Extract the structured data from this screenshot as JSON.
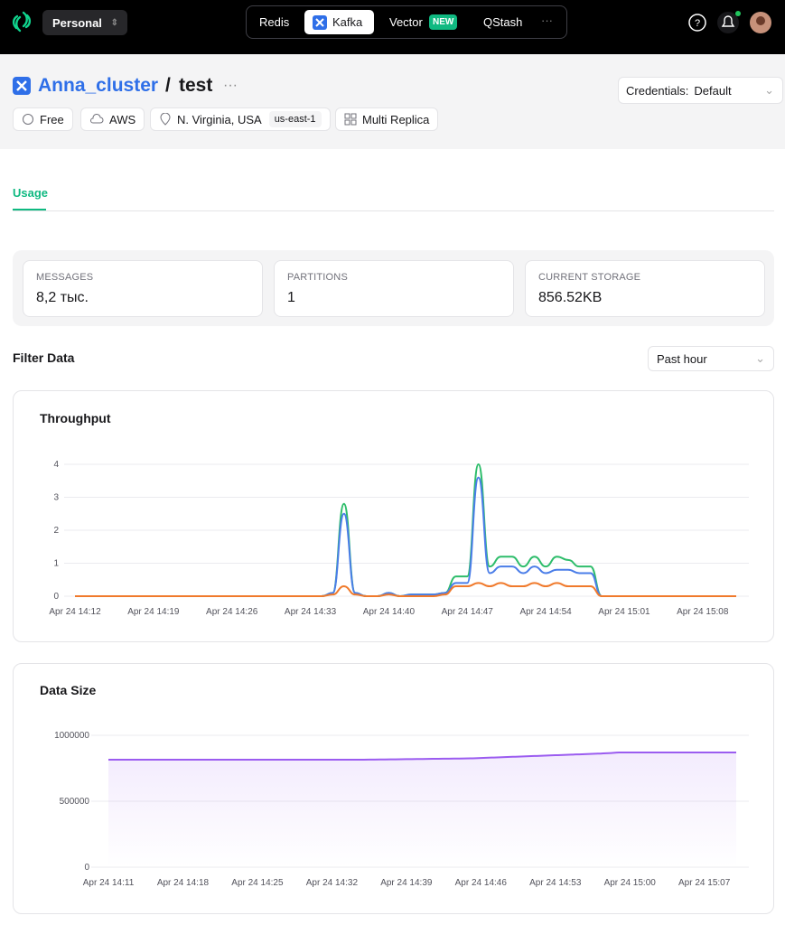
{
  "nav": {
    "workspace": "Personal",
    "tabs": [
      "Redis",
      "Kafka",
      "Vector",
      "QStash"
    ],
    "badge": "NEW"
  },
  "header": {
    "cluster": "Anna_cluster",
    "separator": "/",
    "database": "test",
    "credentials_label": "Credentials:",
    "credentials_value": "Default",
    "tags": [
      "Free",
      "AWS",
      "N. Virginia, USA",
      "us-east-1",
      "Multi Replica"
    ]
  },
  "tabs": [
    "Usage"
  ],
  "stats": [
    {
      "label": "MESSAGES",
      "value": "8,2 тыс."
    },
    {
      "label": "PARTITIONS",
      "value": "1"
    },
    {
      "label": "CURRENT STORAGE",
      "value": "856.52KB"
    }
  ],
  "filter": {
    "title": "Filter Data",
    "range": "Past hour"
  },
  "chart_data": [
    {
      "type": "line",
      "title": "Throughput",
      "x": [
        "Apr 24 14:12",
        null,
        null,
        null,
        null,
        null,
        null,
        "Apr 24 14:19",
        null,
        null,
        null,
        null,
        null,
        null,
        "Apr 24 14:26",
        null,
        null,
        null,
        null,
        null,
        null,
        "Apr 24 14:33",
        null,
        null,
        null,
        null,
        null,
        null,
        "Apr 24 14:40",
        null,
        null,
        null,
        null,
        null,
        null,
        "Apr 24 14:47",
        null,
        null,
        null,
        null,
        null,
        null,
        "Apr 24 14:54",
        null,
        null,
        null,
        null,
        null,
        null,
        "Apr 24 15:01",
        null,
        null,
        null,
        null,
        null,
        null,
        "Apr 24 15:08",
        null,
        null,
        null
      ],
      "series": [
        {
          "color": "#2ebd6b",
          "values": [
            0,
            0,
            0,
            0,
            0,
            0,
            0,
            0,
            0,
            0,
            0,
            0,
            0,
            0,
            0,
            0,
            0,
            0,
            0,
            0,
            0,
            0,
            0,
            0.1,
            2.8,
            0.1,
            0,
            0,
            0.1,
            0,
            0.05,
            0.05,
            0.05,
            0.1,
            0.6,
            0.6,
            4,
            0.9,
            1.2,
            1.2,
            0.9,
            1.2,
            0.9,
            1.2,
            1.1,
            0.9,
            0.9,
            0,
            0,
            0,
            0,
            0,
            0,
            0,
            0,
            0,
            0,
            0,
            0,
            0
          ]
        },
        {
          "color": "#4a7de8",
          "values": [
            0,
            0,
            0,
            0,
            0,
            0,
            0,
            0,
            0,
            0,
            0,
            0,
            0,
            0,
            0,
            0,
            0,
            0,
            0,
            0,
            0,
            0,
            0,
            0.1,
            2.5,
            0.1,
            0,
            0,
            0.1,
            0,
            0.05,
            0.05,
            0.05,
            0.1,
            0.4,
            0.4,
            3.6,
            0.7,
            0.9,
            0.9,
            0.7,
            0.9,
            0.7,
            0.8,
            0.8,
            0.7,
            0.7,
            0,
            0,
            0,
            0,
            0,
            0,
            0,
            0,
            0,
            0,
            0,
            0,
            0
          ]
        },
        {
          "color": "#f07a2c",
          "values": [
            0,
            0,
            0,
            0,
            0,
            0,
            0,
            0,
            0,
            0,
            0,
            0,
            0,
            0,
            0,
            0,
            0,
            0,
            0,
            0,
            0,
            0,
            0,
            0.05,
            0.3,
            0.05,
            0,
            0,
            0.05,
            0,
            0,
            0,
            0,
            0.05,
            0.3,
            0.3,
            0.4,
            0.3,
            0.4,
            0.3,
            0.3,
            0.4,
            0.3,
            0.4,
            0.3,
            0.3,
            0.3,
            0,
            0,
            0,
            0,
            0,
            0,
            0,
            0,
            0,
            0,
            0,
            0,
            0
          ]
        }
      ],
      "ylim": [
        0,
        4
      ],
      "yticks": [
        0,
        1,
        2,
        3,
        4
      ],
      "grid": true
    },
    {
      "type": "area",
      "title": "Data Size",
      "x": [
        "Apr 24 14:11",
        null,
        null,
        null,
        null,
        null,
        null,
        "Apr 24 14:18",
        null,
        null,
        null,
        null,
        null,
        null,
        "Apr 24 14:25",
        null,
        null,
        null,
        null,
        null,
        null,
        "Apr 24 14:32",
        null,
        null,
        null,
        null,
        null,
        null,
        "Apr 24 14:39",
        null,
        null,
        null,
        null,
        null,
        null,
        "Apr 24 14:46",
        null,
        null,
        null,
        null,
        null,
        null,
        "Apr 24 14:53",
        null,
        null,
        null,
        null,
        null,
        null,
        "Apr 24 15:00",
        null,
        null,
        null,
        null,
        null,
        null,
        "Apr 24 15:07",
        null,
        null,
        null
      ],
      "series": [
        {
          "color": "#9b5cf0",
          "values": [
            815000,
            815000,
            815000,
            815000,
            815000,
            815000,
            815000,
            815000,
            815000,
            815000,
            815000,
            815000,
            815000,
            815000,
            815000,
            815000,
            815000,
            815000,
            815000,
            815000,
            815000,
            815000,
            815000,
            815000,
            815000,
            816000,
            817000,
            818000,
            819000,
            820000,
            821000,
            822000,
            823000,
            824000,
            825000,
            828000,
            831000,
            834000,
            837000,
            840000,
            843000,
            846000,
            849000,
            852000,
            855000,
            858000,
            861000,
            865000,
            870000,
            870000,
            870000,
            870000,
            870000,
            870000,
            870000,
            870000,
            870000,
            870000,
            870000,
            870000
          ]
        }
      ],
      "ylim": [
        0,
        1000000
      ],
      "yticks": [
        0,
        500000,
        1000000
      ],
      "grid": true
    }
  ]
}
